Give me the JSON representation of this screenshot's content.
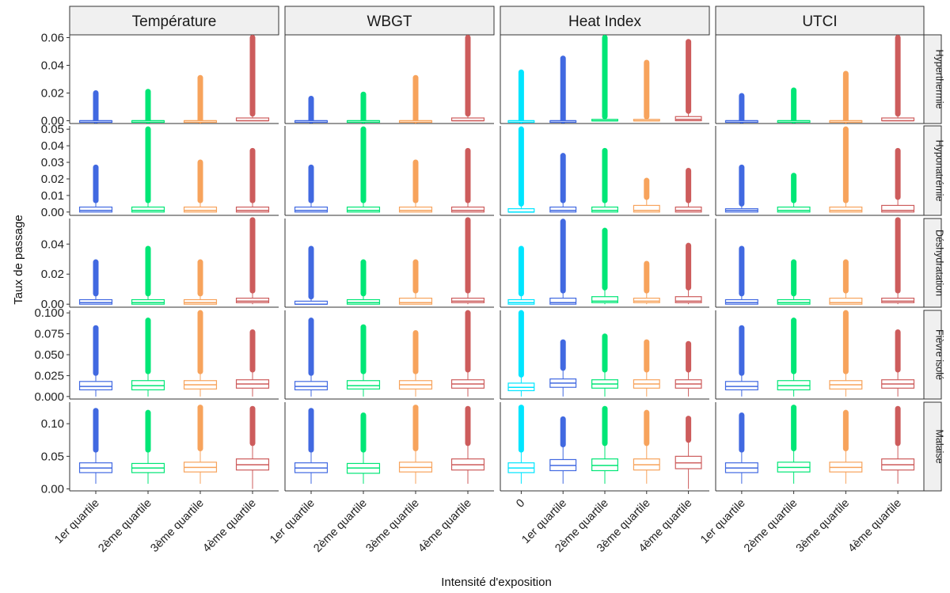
{
  "chart_data": {
    "type": "boxplot",
    "xlabel": "Intensité d'exposition",
    "ylabel": "Taux de passage",
    "columns": [
      {
        "name": "Température",
        "categories": [
          "1er quartile",
          "2ème quartile",
          "3ème quartile",
          "4ème quartile"
        ]
      },
      {
        "name": "WBGT",
        "categories": [
          "1er quartile",
          "2ème quartile",
          "3ème quartile",
          "4ème quartile"
        ]
      },
      {
        "name": "Heat Index",
        "categories": [
          "0",
          "1er quartile",
          "2ème quartile",
          "3ème quartile",
          "4ème quartile"
        ]
      },
      {
        "name": "UTCI",
        "categories": [
          "1er quartile",
          "2ème quartile",
          "3ème quartile",
          "4ème quartile"
        ]
      }
    ],
    "category_colors": {
      "0": "#00e5ff",
      "1er quartile": "#4169e1",
      "2ème quartile": "#00e676",
      "3ème quartile": "#f7a35c",
      "4ème quartile": "#cd5c5c"
    },
    "rows": [
      {
        "name": "Hyperthermie",
        "ylim": [
          -0.002,
          0.062
        ],
        "ticks": [
          0.0,
          0.02,
          0.04,
          0.06
        ],
        "tick_labels": [
          "0.00",
          "0.02",
          "0.04",
          "0.06"
        ],
        "boxes": [
          [
            [
              0,
              0,
              0,
              0,
              0,
              0.02
            ],
            [
              0,
              0,
              0,
              0,
              0,
              0.021
            ],
            [
              0,
              0,
              0,
              0,
              0,
              0.031
            ],
            [
              0,
              0,
              0,
              0.002,
              0.005,
              0.06
            ]
          ],
          [
            [
              0,
              0,
              0,
              0,
              0,
              0.016
            ],
            [
              0,
              0,
              0,
              0,
              0,
              0.019
            ],
            [
              0,
              0,
              0,
              0,
              0,
              0.031
            ],
            [
              0,
              0,
              0,
              0.002,
              0.005,
              0.06
            ]
          ],
          [
            [
              0,
              0,
              0,
              0,
              0,
              0.035
            ],
            [
              0,
              0,
              0,
              0,
              0,
              0.045
            ],
            [
              0,
              0,
              0,
              0.001,
              0.003,
              0.06
            ],
            [
              0,
              0,
              0,
              0.001,
              0.003,
              0.042
            ],
            [
              0,
              0,
              0.001,
              0.003,
              0.007,
              0.057
            ]
          ],
          [
            [
              0,
              0,
              0,
              0,
              0,
              0.018
            ],
            [
              0,
              0,
              0,
              0,
              0,
              0.022
            ],
            [
              0,
              0,
              0,
              0,
              0,
              0.034
            ],
            [
              0,
              0,
              0,
              0.002,
              0.005,
              0.06
            ]
          ]
        ]
      },
      {
        "name": "Hyponatrémie",
        "ylim": [
          -0.002,
          0.052
        ],
        "ticks": [
          0.0,
          0.01,
          0.02,
          0.03,
          0.04,
          0.05
        ],
        "tick_labels": [
          "0.00",
          "0.01",
          "0.02",
          "0.03",
          "0.04",
          "0.05"
        ],
        "boxes": [
          [
            [
              0,
              0,
              0.001,
              0.003,
              0.007,
              0.027
            ],
            [
              0,
              0,
              0.001,
              0.003,
              0.007,
              0.05
            ],
            [
              0,
              0,
              0.001,
              0.003,
              0.007,
              0.03
            ],
            [
              0,
              0,
              0.001,
              0.003,
              0.007,
              0.037
            ]
          ],
          [
            [
              0,
              0,
              0.001,
              0.003,
              0.007,
              0.027
            ],
            [
              0,
              0,
              0.001,
              0.003,
              0.007,
              0.05
            ],
            [
              0,
              0,
              0.001,
              0.003,
              0.007,
              0.03
            ],
            [
              0,
              0,
              0.001,
              0.003,
              0.007,
              0.037
            ]
          ],
          [
            [
              0,
              0,
              0,
              0.002,
              0.005,
              0.05
            ],
            [
              0,
              0,
              0.001,
              0.003,
              0.007,
              0.034
            ],
            [
              0,
              0,
              0.001,
              0.003,
              0.007,
              0.037
            ],
            [
              0,
              0,
              0.001,
              0.004,
              0.009,
              0.019
            ],
            [
              0,
              0,
              0.001,
              0.003,
              0.007,
              0.025
            ]
          ],
          [
            [
              0,
              0,
              0.001,
              0.002,
              0.005,
              0.027
            ],
            [
              0,
              0,
              0.001,
              0.003,
              0.007,
              0.022
            ],
            [
              0,
              0,
              0.001,
              0.003,
              0.007,
              0.05
            ],
            [
              0,
              0,
              0.001,
              0.004,
              0.009,
              0.037
            ]
          ]
        ]
      },
      {
        "name": "Déshydratation",
        "ylim": [
          -0.002,
          0.057
        ],
        "ticks": [
          0.0,
          0.02,
          0.04
        ],
        "tick_labels": [
          "0.00",
          "0.02",
          "0.04"
        ],
        "boxes": [
          [
            [
              0,
              0,
              0.001,
              0.003,
              0.007,
              0.028
            ],
            [
              0,
              0,
              0.001,
              0.003,
              0.007,
              0.037
            ],
            [
              0,
              0,
              0.001,
              0.003,
              0.007,
              0.028
            ],
            [
              0,
              0.001,
              0.002,
              0.004,
              0.009,
              0.056
            ]
          ],
          [
            [
              0,
              0,
              0,
              0.002,
              0.005,
              0.037
            ],
            [
              0,
              0,
              0.001,
              0.003,
              0.007,
              0.028
            ],
            [
              0,
              0,
              0.001,
              0.004,
              0.009,
              0.028
            ],
            [
              0,
              0.001,
              0.002,
              0.004,
              0.009,
              0.056
            ]
          ],
          [
            [
              0,
              0,
              0.001,
              0.003,
              0.007,
              0.037
            ],
            [
              0,
              0,
              0.001,
              0.004,
              0.009,
              0.055
            ],
            [
              0,
              0.001,
              0.002,
              0.005,
              0.011,
              0.049
            ],
            [
              0,
              0.001,
              0.002,
              0.004,
              0.009,
              0.027
            ],
            [
              0,
              0.001,
              0.002,
              0.005,
              0.011,
              0.039
            ]
          ],
          [
            [
              0,
              0,
              0.001,
              0.003,
              0.007,
              0.037
            ],
            [
              0,
              0,
              0.001,
              0.003,
              0.007,
              0.028
            ],
            [
              0,
              0,
              0.001,
              0.004,
              0.009,
              0.028
            ],
            [
              0,
              0.001,
              0.002,
              0.004,
              0.009,
              0.056
            ]
          ]
        ]
      },
      {
        "name": "Fièvre isolé",
        "ylim": [
          -0.003,
          0.103
        ],
        "ticks": [
          0.0,
          0.025,
          0.05,
          0.075,
          0.1
        ],
        "tick_labels": [
          "0.000",
          "0.025",
          "0.050",
          "0.075",
          "0.100"
        ],
        "boxes": [
          [
            [
              0,
              0.008,
              0.012,
              0.018,
              0.028,
              0.082
            ],
            [
              0,
              0.008,
              0.013,
              0.019,
              0.03,
              0.091
            ],
            [
              0,
              0.009,
              0.014,
              0.019,
              0.03,
              0.1
            ],
            [
              0,
              0.01,
              0.015,
              0.02,
              0.032,
              0.077
            ]
          ],
          [
            [
              0,
              0.008,
              0.012,
              0.018,
              0.028,
              0.091
            ],
            [
              0,
              0.009,
              0.013,
              0.019,
              0.03,
              0.083
            ],
            [
              0,
              0.009,
              0.014,
              0.019,
              0.03,
              0.076
            ],
            [
              0,
              0.01,
              0.015,
              0.02,
              0.032,
              0.1
            ]
          ],
          [
            [
              0,
              0.007,
              0.011,
              0.016,
              0.026,
              0.1
            ],
            [
              0,
              0.011,
              0.016,
              0.021,
              0.034,
              0.065
            ],
            [
              0,
              0.01,
              0.015,
              0.02,
              0.032,
              0.072
            ],
            [
              0,
              0.01,
              0.015,
              0.02,
              0.032,
              0.065
            ],
            [
              0,
              0.01,
              0.015,
              0.02,
              0.032,
              0.063
            ]
          ],
          [
            [
              0,
              0.008,
              0.012,
              0.018,
              0.028,
              0.082
            ],
            [
              0,
              0.008,
              0.013,
              0.019,
              0.03,
              0.091
            ],
            [
              0,
              0.009,
              0.014,
              0.019,
              0.03,
              0.1
            ],
            [
              0,
              0.01,
              0.015,
              0.02,
              0.032,
              0.077
            ]
          ]
        ]
      },
      {
        "name": "Malaise",
        "ylim": [
          -0.003,
          0.133
        ],
        "ticks": [
          0.0,
          0.05,
          0.1
        ],
        "tick_labels": [
          "0.00",
          "0.05",
          "0.10"
        ],
        "boxes": [
          [
            [
              0.008,
              0.025,
              0.032,
              0.04,
              0.06,
              0.12
            ],
            [
              0.008,
              0.025,
              0.032,
              0.039,
              0.06,
              0.117
            ],
            [
              0.008,
              0.026,
              0.033,
              0.041,
              0.062,
              0.125
            ],
            [
              0,
              0.029,
              0.037,
              0.046,
              0.07,
              0.123
            ]
          ],
          [
            [
              0.008,
              0.025,
              0.032,
              0.04,
              0.06,
              0.12
            ],
            [
              0.008,
              0.024,
              0.032,
              0.039,
              0.06,
              0.113
            ],
            [
              0.008,
              0.026,
              0.033,
              0.041,
              0.062,
              0.125
            ],
            [
              0.008,
              0.029,
              0.037,
              0.046,
              0.07,
              0.123
            ]
          ],
          [
            [
              0.008,
              0.025,
              0.032,
              0.04,
              0.06,
              0.125
            ],
            [
              0.008,
              0.028,
              0.036,
              0.045,
              0.068,
              0.107
            ],
            [
              0.008,
              0.028,
              0.036,
              0.046,
              0.07,
              0.123
            ],
            [
              0.008,
              0.029,
              0.037,
              0.046,
              0.07,
              0.117
            ],
            [
              0,
              0.031,
              0.04,
              0.05,
              0.075,
              0.108
            ]
          ],
          [
            [
              0.008,
              0.025,
              0.032,
              0.04,
              0.06,
              0.113
            ],
            [
              0.008,
              0.026,
              0.033,
              0.041,
              0.062,
              0.125
            ],
            [
              0.008,
              0.026,
              0.033,
              0.041,
              0.062,
              0.117
            ],
            [
              0.008,
              0.029,
              0.037,
              0.046,
              0.07,
              0.123
            ]
          ]
        ]
      }
    ]
  }
}
